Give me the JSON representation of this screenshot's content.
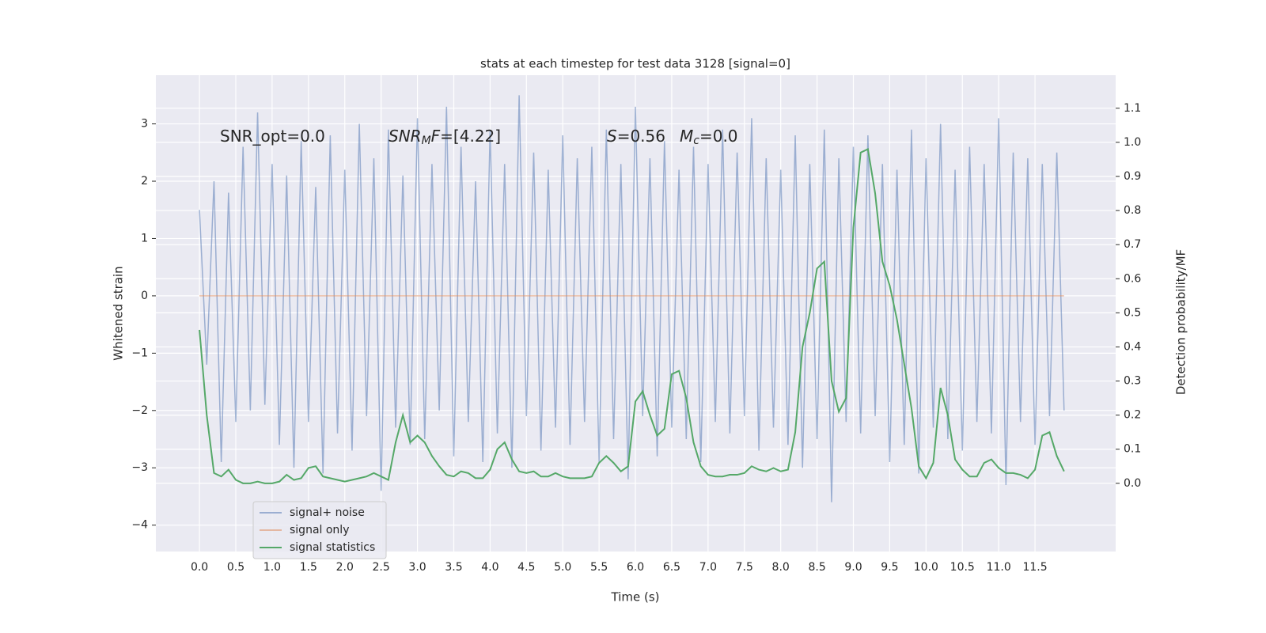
{
  "chart_data": {
    "type": "line",
    "title": "stats at each timestep for test data 3128 [signal=0]",
    "xlabel": "Time (s)",
    "ylabel": "Whitened strain",
    "y2label": "Detection probability/MF",
    "xlim": [
      -0.6,
      12.61
    ],
    "ylim": [
      -4.46,
      3.85
    ],
    "y2lim": [
      -0.2,
      1.197
    ],
    "xticks": [
      {
        "value": 0,
        "label": "0.0"
      },
      0.5,
      {
        "value": 1,
        "label": "1.0"
      },
      1.5,
      {
        "value": 2,
        "label": "2.0"
      },
      2.5,
      {
        "value": 3,
        "label": "3.0"
      },
      3.5,
      {
        "value": 4,
        "label": "4.0"
      },
      4.5,
      {
        "value": 5,
        "label": "5.0"
      },
      5.5,
      {
        "value": 6,
        "label": "6.0"
      },
      6.5,
      {
        "value": 7,
        "label": "7.0"
      },
      7.5,
      {
        "value": 8,
        "label": "8.0"
      },
      8.5,
      {
        "value": 9,
        "label": "9.0"
      },
      9.5,
      {
        "value": 10,
        "label": "10.0"
      },
      10.5,
      {
        "value": 11,
        "label": "11.0"
      },
      11.5
    ],
    "yticks": [
      {
        "value": -4,
        "label": "−4"
      },
      {
        "value": -3,
        "label": "−3"
      },
      {
        "value": -2,
        "label": "−2"
      },
      {
        "value": -1,
        "label": "−1"
      },
      0,
      1,
      2,
      3
    ],
    "y2ticks": [
      {
        "value": 0,
        "label": "0.0"
      },
      0.1,
      0.2,
      0.3,
      0.4,
      0.5,
      0.6,
      0.7,
      0.8,
      0.9,
      {
        "value": 1,
        "label": "1.0"
      },
      1.1
    ],
    "grid": true,
    "legend": "lower left",
    "annotations": [
      [
        {
          "text": "SNR_opt=0.0"
        }
      ],
      [
        {
          "text": "SNR",
          "italic": true
        },
        {
          "text": "M",
          "italic": true,
          "sub": true
        },
        {
          "text": "F",
          "italic": true
        },
        {
          "text": "=[4.22]"
        }
      ],
      [
        {
          "text": "S",
          "italic": true
        },
        {
          "text": "=0.56"
        }
      ],
      [
        {
          "text": "M",
          "italic": true
        },
        {
          "text": "c",
          "italic": true,
          "sub": true
        },
        {
          "text": "=0.0"
        }
      ]
    ],
    "x": [
      0.0,
      0.1,
      0.2,
      0.3,
      0.4,
      0.5,
      0.6,
      0.7,
      0.8,
      0.9,
      1.0,
      1.1,
      1.2,
      1.3,
      1.4,
      1.5,
      1.6,
      1.7,
      1.8,
      1.9,
      2.0,
      2.1,
      2.2,
      2.3,
      2.4,
      2.5,
      2.6,
      2.7,
      2.8,
      2.9,
      3.0,
      3.1,
      3.2,
      3.3,
      3.4,
      3.5,
      3.6,
      3.7,
      3.8,
      3.9,
      4.0,
      4.1,
      4.2,
      4.3,
      4.4,
      4.5,
      4.6,
      4.7,
      4.8,
      4.9,
      5.0,
      5.1,
      5.2,
      5.3,
      5.4,
      5.5,
      5.6,
      5.7,
      5.8,
      5.9,
      6.0,
      6.1,
      6.2,
      6.3,
      6.4,
      6.5,
      6.6,
      6.7,
      6.8,
      6.9,
      7.0,
      7.1,
      7.2,
      7.3,
      7.4,
      7.5,
      7.6,
      7.7,
      7.8,
      7.9,
      8.0,
      8.1,
      8.2,
      8.3,
      8.4,
      8.5,
      8.6,
      8.7,
      8.8,
      8.9,
      9.0,
      9.1,
      9.2,
      9.3,
      9.4,
      9.5,
      9.6,
      9.7,
      9.8,
      9.9,
      10.0,
      10.1,
      10.2,
      10.3,
      10.4,
      10.5,
      10.6,
      10.7,
      10.8,
      10.9,
      11.0,
      11.1,
      11.2,
      11.3,
      11.4,
      11.5,
      11.6,
      11.7,
      11.8,
      11.9
    ],
    "series": [
      {
        "name": "signal+ noise",
        "color": "#4c72b0",
        "opacity": 0.5,
        "values": [
          1.5,
          -1.2,
          2.0,
          -2.9,
          1.8,
          -2.2,
          2.6,
          -2.0,
          3.2,
          -1.9,
          2.3,
          -2.6,
          2.1,
          -3.0,
          2.7,
          -2.2,
          1.9,
          -3.1,
          2.8,
          -2.4,
          2.2,
          -2.7,
          3.0,
          -2.1,
          2.4,
          -3.4,
          2.9,
          -2.3,
          2.1,
          -2.6,
          3.1,
          -2.5,
          2.3,
          -2.0,
          3.3,
          -2.8,
          2.6,
          -2.2,
          2.0,
          -2.9,
          2.9,
          -2.4,
          2.3,
          -3.0,
          3.5,
          -2.1,
          2.5,
          -2.7,
          2.2,
          -2.3,
          2.8,
          -2.6,
          2.4,
          -2.2,
          2.6,
          -2.9,
          2.9,
          -2.5,
          2.3,
          -3.2,
          3.3,
          -2.1,
          2.4,
          -2.8,
          2.7,
          -2.3,
          2.2,
          -2.5,
          2.6,
          -2.9,
          2.3,
          -2.2,
          2.9,
          -2.4,
          2.5,
          -2.1,
          3.1,
          -2.7,
          2.4,
          -2.3,
          2.2,
          -2.6,
          2.8,
          -3.0,
          2.3,
          -2.5,
          2.9,
          -3.6,
          2.4,
          -2.2,
          2.6,
          -2.4,
          2.8,
          -2.1,
          2.3,
          -2.9,
          2.2,
          -2.6,
          2.9,
          -3.1,
          2.4,
          -2.3,
          3.0,
          -2.5,
          2.2,
          -2.7,
          2.6,
          -2.2,
          2.3,
          -2.4,
          3.1,
          -3.3,
          2.5,
          -2.2,
          2.4,
          -2.6,
          2.3,
          -2.1,
          2.5,
          -2.0
        ]
      },
      {
        "name": "signal only",
        "color": "#dd8452",
        "opacity": 0.5,
        "values": [
          0,
          0,
          0,
          0,
          0,
          0,
          0,
          0,
          0,
          0,
          0,
          0,
          0,
          0,
          0,
          0,
          0,
          0,
          0,
          0,
          0,
          0,
          0,
          0,
          0,
          0,
          0,
          0,
          0,
          0,
          0,
          0,
          0,
          0,
          0,
          0,
          0,
          0,
          0,
          0,
          0,
          0,
          0,
          0,
          0,
          0,
          0,
          0,
          0,
          0,
          0,
          0,
          0,
          0,
          0,
          0,
          0,
          0,
          0,
          0,
          0,
          0,
          0,
          0,
          0,
          0,
          0,
          0,
          0,
          0,
          0,
          0,
          0,
          0,
          0,
          0,
          0,
          0,
          0,
          0,
          0,
          0,
          0,
          0,
          0,
          0,
          0,
          0,
          0,
          0,
          0,
          0,
          0,
          0,
          0,
          0,
          0,
          0,
          0,
          0,
          0,
          0,
          0,
          0,
          0,
          0,
          0,
          0,
          0,
          0,
          0,
          0,
          0,
          0,
          0,
          0,
          0,
          0,
          0,
          0
        ]
      },
      {
        "name": "signal statistics",
        "color": "#55a868",
        "opacity": 1,
        "axis": "y2",
        "values": [
          0.45,
          0.2,
          0.03,
          0.02,
          0.04,
          0.01,
          0.0,
          0.0,
          0.005,
          0.0,
          0.0,
          0.005,
          0.025,
          0.01,
          0.015,
          0.045,
          0.05,
          0.02,
          0.015,
          0.01,
          0.005,
          0.01,
          0.015,
          0.02,
          0.03,
          0.02,
          0.01,
          0.12,
          0.2,
          0.12,
          0.14,
          0.12,
          0.08,
          0.05,
          0.025,
          0.02,
          0.035,
          0.03,
          0.015,
          0.015,
          0.04,
          0.1,
          0.12,
          0.07,
          0.035,
          0.03,
          0.035,
          0.02,
          0.02,
          0.03,
          0.02,
          0.015,
          0.015,
          0.015,
          0.02,
          0.06,
          0.08,
          0.06,
          0.035,
          0.05,
          0.24,
          0.27,
          0.2,
          0.14,
          0.16,
          0.32,
          0.33,
          0.25,
          0.12,
          0.05,
          0.025,
          0.02,
          0.02,
          0.025,
          0.025,
          0.03,
          0.05,
          0.04,
          0.035,
          0.045,
          0.035,
          0.04,
          0.15,
          0.4,
          0.5,
          0.63,
          0.65,
          0.3,
          0.21,
          0.25,
          0.75,
          0.97,
          0.98,
          0.85,
          0.65,
          0.58,
          0.48,
          0.35,
          0.22,
          0.05,
          0.015,
          0.06,
          0.28,
          0.2,
          0.07,
          0.04,
          0.02,
          0.02,
          0.06,
          0.07,
          0.045,
          0.03,
          0.03,
          0.025,
          0.015,
          0.04,
          0.14,
          0.15,
          0.08,
          0.035
        ]
      }
    ]
  }
}
